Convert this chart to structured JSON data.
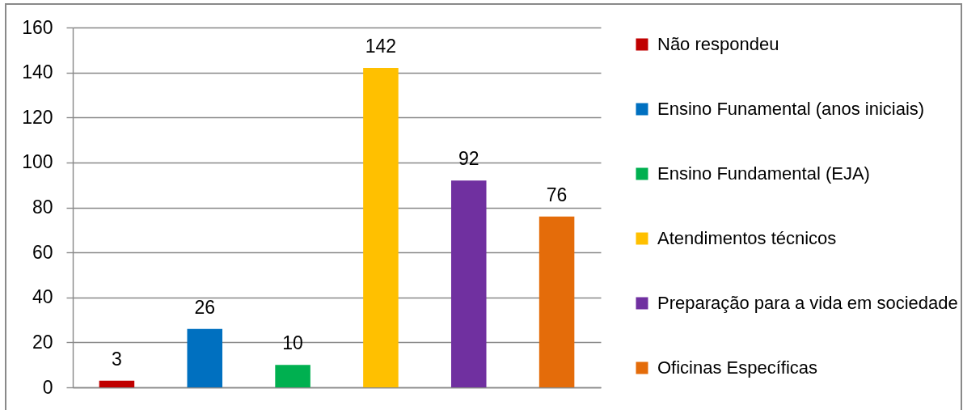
{
  "chart_data": {
    "type": "bar",
    "categories": [
      null,
      null,
      null,
      null,
      null,
      null
    ],
    "series": [
      {
        "name": "Não respondeu",
        "color": "#c00000",
        "values": [
          3,
          null,
          null,
          null,
          null,
          null
        ]
      },
      {
        "name": "Ensino Funamental (anos iniciais)",
        "color": "#0070c0",
        "values": [
          null,
          26,
          null,
          null,
          null,
          null
        ]
      },
      {
        "name": "Ensino Fundamental (EJA)",
        "color": "#00b050",
        "values": [
          null,
          null,
          10,
          null,
          null,
          null
        ]
      },
      {
        "name": "Atendimentos técnicos",
        "color": "#ffc000",
        "values": [
          null,
          null,
          null,
          142,
          null,
          null
        ]
      },
      {
        "name": "Preparação para a vida em sociedade",
        "color": "#7030a0",
        "values": [
          null,
          null,
          null,
          null,
          92,
          null
        ]
      },
      {
        "name": "Oficinas Específicas",
        "color": "#e46c0a",
        "values": [
          null,
          null,
          null,
          null,
          null,
          76
        ]
      }
    ],
    "ylim": [
      0,
      160
    ],
    "yticks": [
      0,
      20,
      40,
      60,
      80,
      100,
      120,
      140,
      160
    ],
    "grid": "y",
    "legend": "right",
    "data_labels": true,
    "tick_labels": "y"
  }
}
